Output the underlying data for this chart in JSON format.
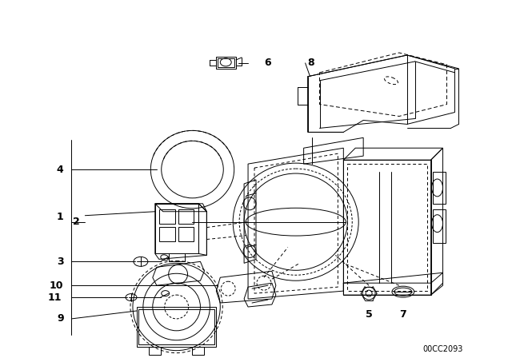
{
  "background_color": "#ffffff",
  "line_color": "#000000",
  "watermark": "00CC2093",
  "fig_width": 6.4,
  "fig_height": 4.48,
  "dpi": 100,
  "lw": 0.7
}
